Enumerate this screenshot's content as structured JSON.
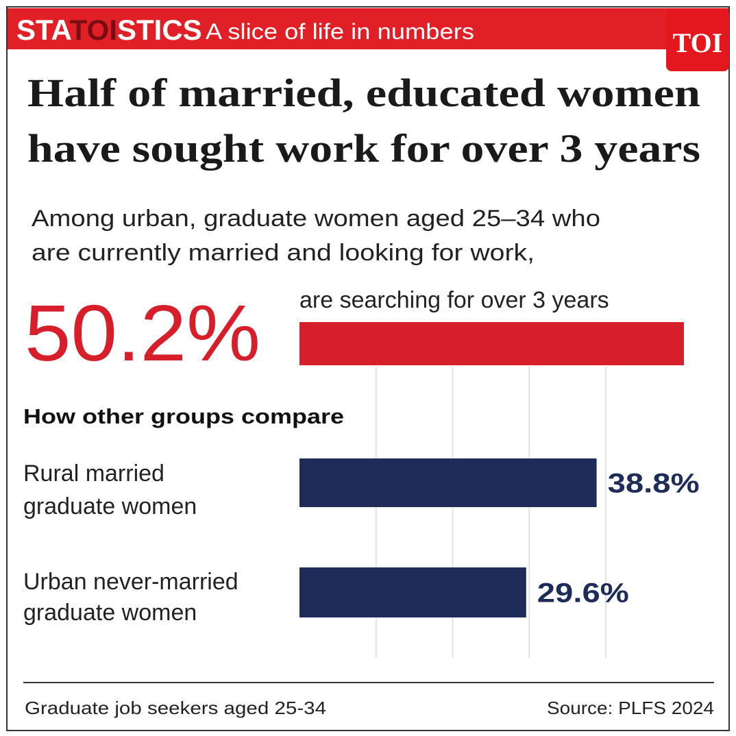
{
  "header": {
    "brand": [
      "STA",
      "TOI",
      "STICS"
    ],
    "tagline": "A slice of life in numbers",
    "logo": "TOI"
  },
  "chart_data": {
    "type": "bar",
    "orientation": "horizontal",
    "title": [
      "Half of married, educated women",
      "have sought work for over 3 years"
    ],
    "subtitle": [
      "Among urban, graduate women aged 25–34 who",
      "are currently married and looking for work,"
    ],
    "section_label": "How other groups compare",
    "categories": [
      [
        "are searching for over 3 years"
      ],
      [
        "Rural married",
        "graduate  women"
      ],
      [
        "Urban never-married",
        "graduate women"
      ]
    ],
    "values": [
      50.2,
      38.8,
      29.6
    ],
    "value_labels": [
      "50.2%",
      "38.8%",
      "29.6%"
    ],
    "colors": [
      "#d71f2b",
      "#1e2c5a",
      "#1e2c5a"
    ],
    "xlim": [
      0,
      50.2
    ],
    "xticks": [
      10,
      20,
      30,
      40
    ],
    "grid": true
  },
  "footer": {
    "note": "Graduate job seekers aged 25-34",
    "source": "Source: PLFS 2024"
  }
}
